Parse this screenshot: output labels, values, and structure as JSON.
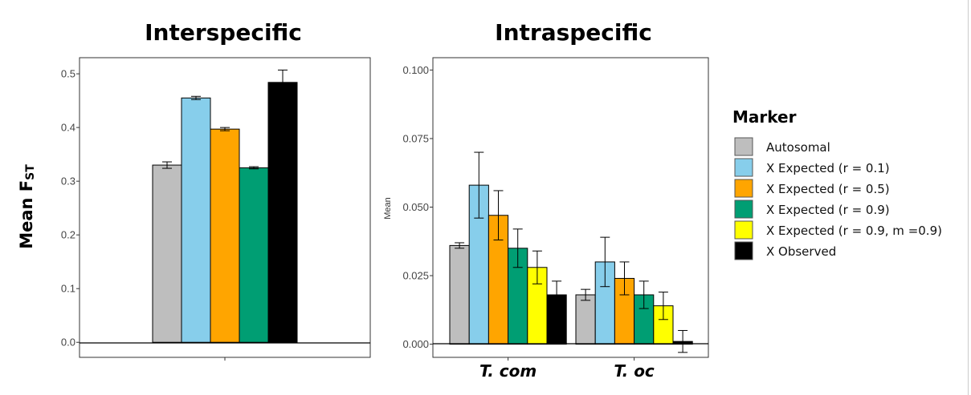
{
  "chart_data": [
    {
      "type": "bar",
      "title": "Interspecific",
      "ylabel": "Mean F",
      "ylabel_sub": "ST",
      "ylim": [
        -0.028,
        0.53
      ],
      "yticks": [
        "0.0",
        "0.1",
        "0.2",
        "0.3",
        "0.4",
        "0.5"
      ],
      "ytick_values": [
        0.0,
        0.1,
        0.2,
        0.3,
        0.4,
        0.5
      ],
      "series": [
        {
          "name": "Autosomal",
          "values": [
            0.33
          ],
          "errors": [
            0.006
          ]
        },
        {
          "name": "X Expected (r = 0.1)",
          "values": [
            0.455
          ],
          "errors": [
            0.003
          ]
        },
        {
          "name": "X Expected (r = 0.5)",
          "values": [
            0.397
          ],
          "errors": [
            0.003
          ]
        },
        {
          "name": "X Expected (r = 0.9)",
          "values": [
            0.325
          ],
          "errors": [
            0.002
          ]
        },
        {
          "name": "X Observed",
          "values": [
            0.484
          ],
          "errors": [
            0.023
          ]
        }
      ]
    },
    {
      "type": "bar",
      "title": "Intraspecific",
      "ylabel": "Mean",
      "ylim": [
        -0.0048,
        0.1045
      ],
      "yticks": [
        "0.000",
        "0.025",
        "0.050",
        "0.075",
        "0.100"
      ],
      "ytick_values": [
        0.0,
        0.025,
        0.05,
        0.075,
        0.1
      ],
      "categories": [
        "T. com",
        "T. oc"
      ],
      "series": [
        {
          "name": "Autosomal",
          "values": [
            0.036,
            0.018
          ],
          "errors": [
            0.001,
            0.002
          ]
        },
        {
          "name": "X Expected (r = 0.1)",
          "values": [
            0.058,
            0.03
          ],
          "errors": [
            0.012,
            0.009
          ]
        },
        {
          "name": "X Expected (r = 0.5)",
          "values": [
            0.047,
            0.024
          ],
          "errors": [
            0.009,
            0.006
          ]
        },
        {
          "name": "X Expected (r = 0.9)",
          "values": [
            0.035,
            0.018
          ],
          "errors": [
            0.007,
            0.005
          ]
        },
        {
          "name": "X Expected (r = 0.9, m =0.9)",
          "values": [
            0.028,
            0.014
          ],
          "errors": [
            0.006,
            0.005
          ]
        },
        {
          "name": "X Observed",
          "values": [
            0.018,
            0.001
          ],
          "errors": [
            0.005,
            0.004
          ]
        }
      ]
    }
  ],
  "legend": {
    "title": "Marker",
    "placement": "right",
    "items": [
      {
        "label": "Autosomal",
        "color": "#bebebe"
      },
      {
        "label": "X Expected (r = 0.1)",
        "color": "#87ceeb"
      },
      {
        "label": "X Expected (r = 0.5)",
        "color": "#ffa500"
      },
      {
        "label": "X Expected (r = 0.9)",
        "color": "#009e73"
      },
      {
        "label": "X Expected (r = 0.9, m =0.9)",
        "color": "#ffff00"
      },
      {
        "label": "X Observed",
        "color": "#000000"
      }
    ]
  },
  "colors": {
    "Autosomal": "#bebebe",
    "X Expected (r = 0.1)": "#87ceeb",
    "X Expected (r = 0.5)": "#ffa500",
    "X Expected (r = 0.9)": "#009e73",
    "X Expected (r = 0.9, m =0.9)": "#ffff00",
    "X Observed": "#000000"
  }
}
